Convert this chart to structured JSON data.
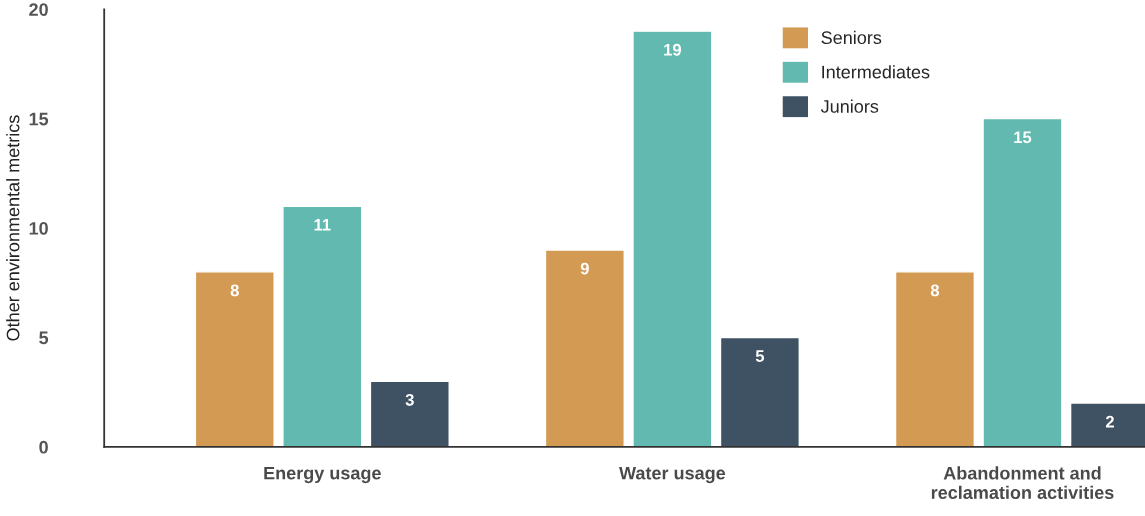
{
  "chart_data": {
    "type": "bar",
    "ylabel": "Other environmental metrics",
    "categories": [
      "Energy usage",
      "Water usage",
      "Abandonment and\nreclamation activities"
    ],
    "series": [
      {
        "name": "Seniors",
        "color": "#d39a53",
        "values": [
          8,
          9,
          8
        ]
      },
      {
        "name": "Intermediates",
        "color": "#62b9af",
        "values": [
          11,
          19,
          15
        ]
      },
      {
        "name": "Juniors",
        "color": "#3f5264",
        "values": [
          3,
          5,
          2
        ]
      }
    ],
    "ylim": [
      0,
      20
    ],
    "yticks": [
      0,
      5,
      10,
      15,
      20
    ],
    "data_labels": true,
    "legend": "top right"
  }
}
